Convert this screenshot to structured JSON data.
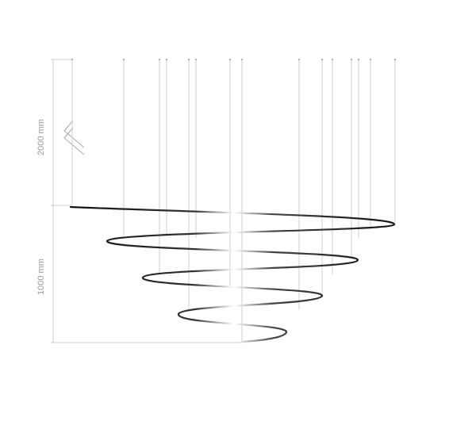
{
  "dimensions": {
    "suspension_length": "2000 mm",
    "lamp_height": "1000 mm"
  },
  "colors": {
    "spiral": "#111111",
    "guide_lines": "#c8c8c8"
  },
  "icons": {
    "break_mark": "zigzag-break-icon"
  }
}
